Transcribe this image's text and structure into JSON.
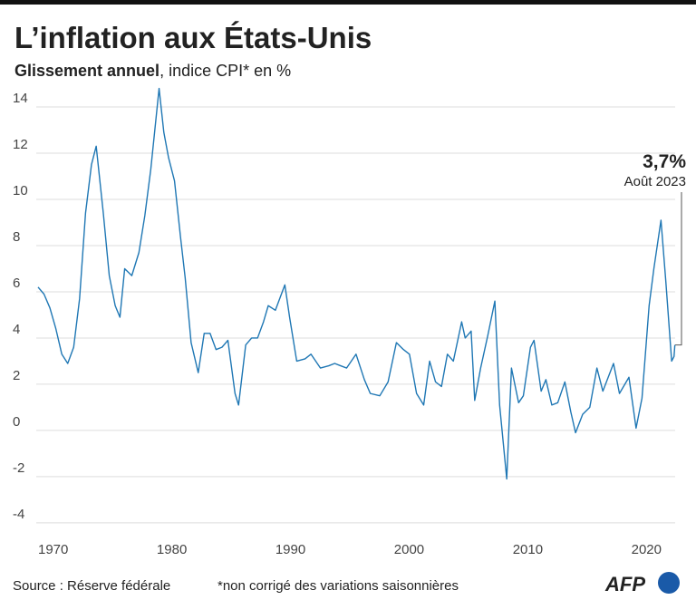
{
  "chart_data": {
    "type": "line",
    "title": "L’inflation aux États-Unis",
    "subtitle_bold": "Glissement annuel",
    "subtitle": ", indice CPI* en %",
    "annotation_value": "3,7%",
    "annotation_date": "Août 2023",
    "source": "Source : Réserve fédérale",
    "note": "*non corrigé des variations saisonnières",
    "logo": "AFP",
    "xlim": [
      1970,
      2024
    ],
    "xticks": [
      1970,
      1980,
      1990,
      2000,
      2010,
      2020
    ],
    "ylim": [
      -4.2,
      15
    ],
    "yticks": [
      -4,
      -2,
      0,
      2,
      4,
      6,
      8,
      10,
      12,
      14
    ],
    "grid": true,
    "color": "#1f77b4",
    "x": [
      1970.0,
      1970.5,
      1971.0,
      1971.5,
      1972.0,
      1972.5,
      1973.0,
      1973.5,
      1974.0,
      1974.5,
      1974.9,
      1975.5,
      1976.0,
      1976.5,
      1976.9,
      1977.3,
      1977.9,
      1978.5,
      1979.0,
      1979.5,
      1980.2,
      1980.6,
      1981.0,
      1981.5,
      1982.0,
      1982.4,
      1982.9,
      1983.5,
      1984.0,
      1984.5,
      1985.0,
      1985.5,
      1986.0,
      1986.6,
      1986.9,
      1987.5,
      1988.0,
      1988.5,
      1989.0,
      1989.4,
      1990.0,
      1990.8,
      1991.2,
      1991.8,
      1992.5,
      1993.0,
      1993.8,
      1994.5,
      1995.0,
      1995.5,
      1996.0,
      1996.8,
      1997.5,
      1998.0,
      1998.8,
      1999.5,
      2000.2,
      2000.8,
      2001.3,
      2001.9,
      2002.5,
      2003.0,
      2003.5,
      2004.0,
      2004.5,
      2005.0,
      2005.7,
      2006.0,
      2006.5,
      2006.8,
      2007.3,
      2007.9,
      2008.5,
      2008.9,
      2009.5,
      2009.9,
      2010.5,
      2010.9,
      2011.5,
      2011.8,
      2012.4,
      2012.8,
      2013.3,
      2013.8,
      2014.4,
      2014.9,
      2015.3,
      2015.9,
      2016.5,
      2017.1,
      2017.6,
      2018.5,
      2019.0,
      2019.8,
      2020.4,
      2020.9,
      2021.5,
      2021.9,
      2022.5,
      2022.9,
      2023.4,
      2023.6,
      2023.67
    ],
    "values": [
      6.2,
      5.9,
      5.3,
      4.4,
      3.3,
      2.9,
      3.6,
      5.7,
      9.4,
      11.5,
      12.3,
      9.4,
      6.7,
      5.4,
      4.9,
      7.0,
      6.7,
      7.7,
      9.3,
      11.3,
      14.8,
      12.9,
      11.8,
      10.8,
      8.4,
      6.6,
      3.8,
      2.5,
      4.2,
      4.2,
      3.5,
      3.6,
      3.9,
      1.6,
      1.1,
      3.7,
      4.0,
      4.0,
      4.7,
      5.4,
      5.2,
      6.3,
      4.9,
      3.0,
      3.1,
      3.3,
      2.7,
      2.8,
      2.9,
      2.8,
      2.7,
      3.3,
      2.2,
      1.6,
      1.5,
      2.1,
      3.8,
      3.5,
      3.3,
      1.6,
      1.1,
      3.0,
      2.1,
      1.9,
      3.3,
      3.0,
      4.7,
      4.0,
      4.3,
      1.3,
      2.7,
      4.1,
      5.6,
      1.1,
      -2.1,
      2.7,
      1.2,
      1.5,
      3.6,
      3.9,
      1.7,
      2.2,
      1.1,
      1.2,
      2.1,
      0.8,
      -0.1,
      0.7,
      1.0,
      2.7,
      1.7,
      2.9,
      1.6,
      2.3,
      0.1,
      1.4,
      5.4,
      7.0,
      9.1,
      6.5,
      3.0,
      3.2,
      3.7
    ]
  }
}
